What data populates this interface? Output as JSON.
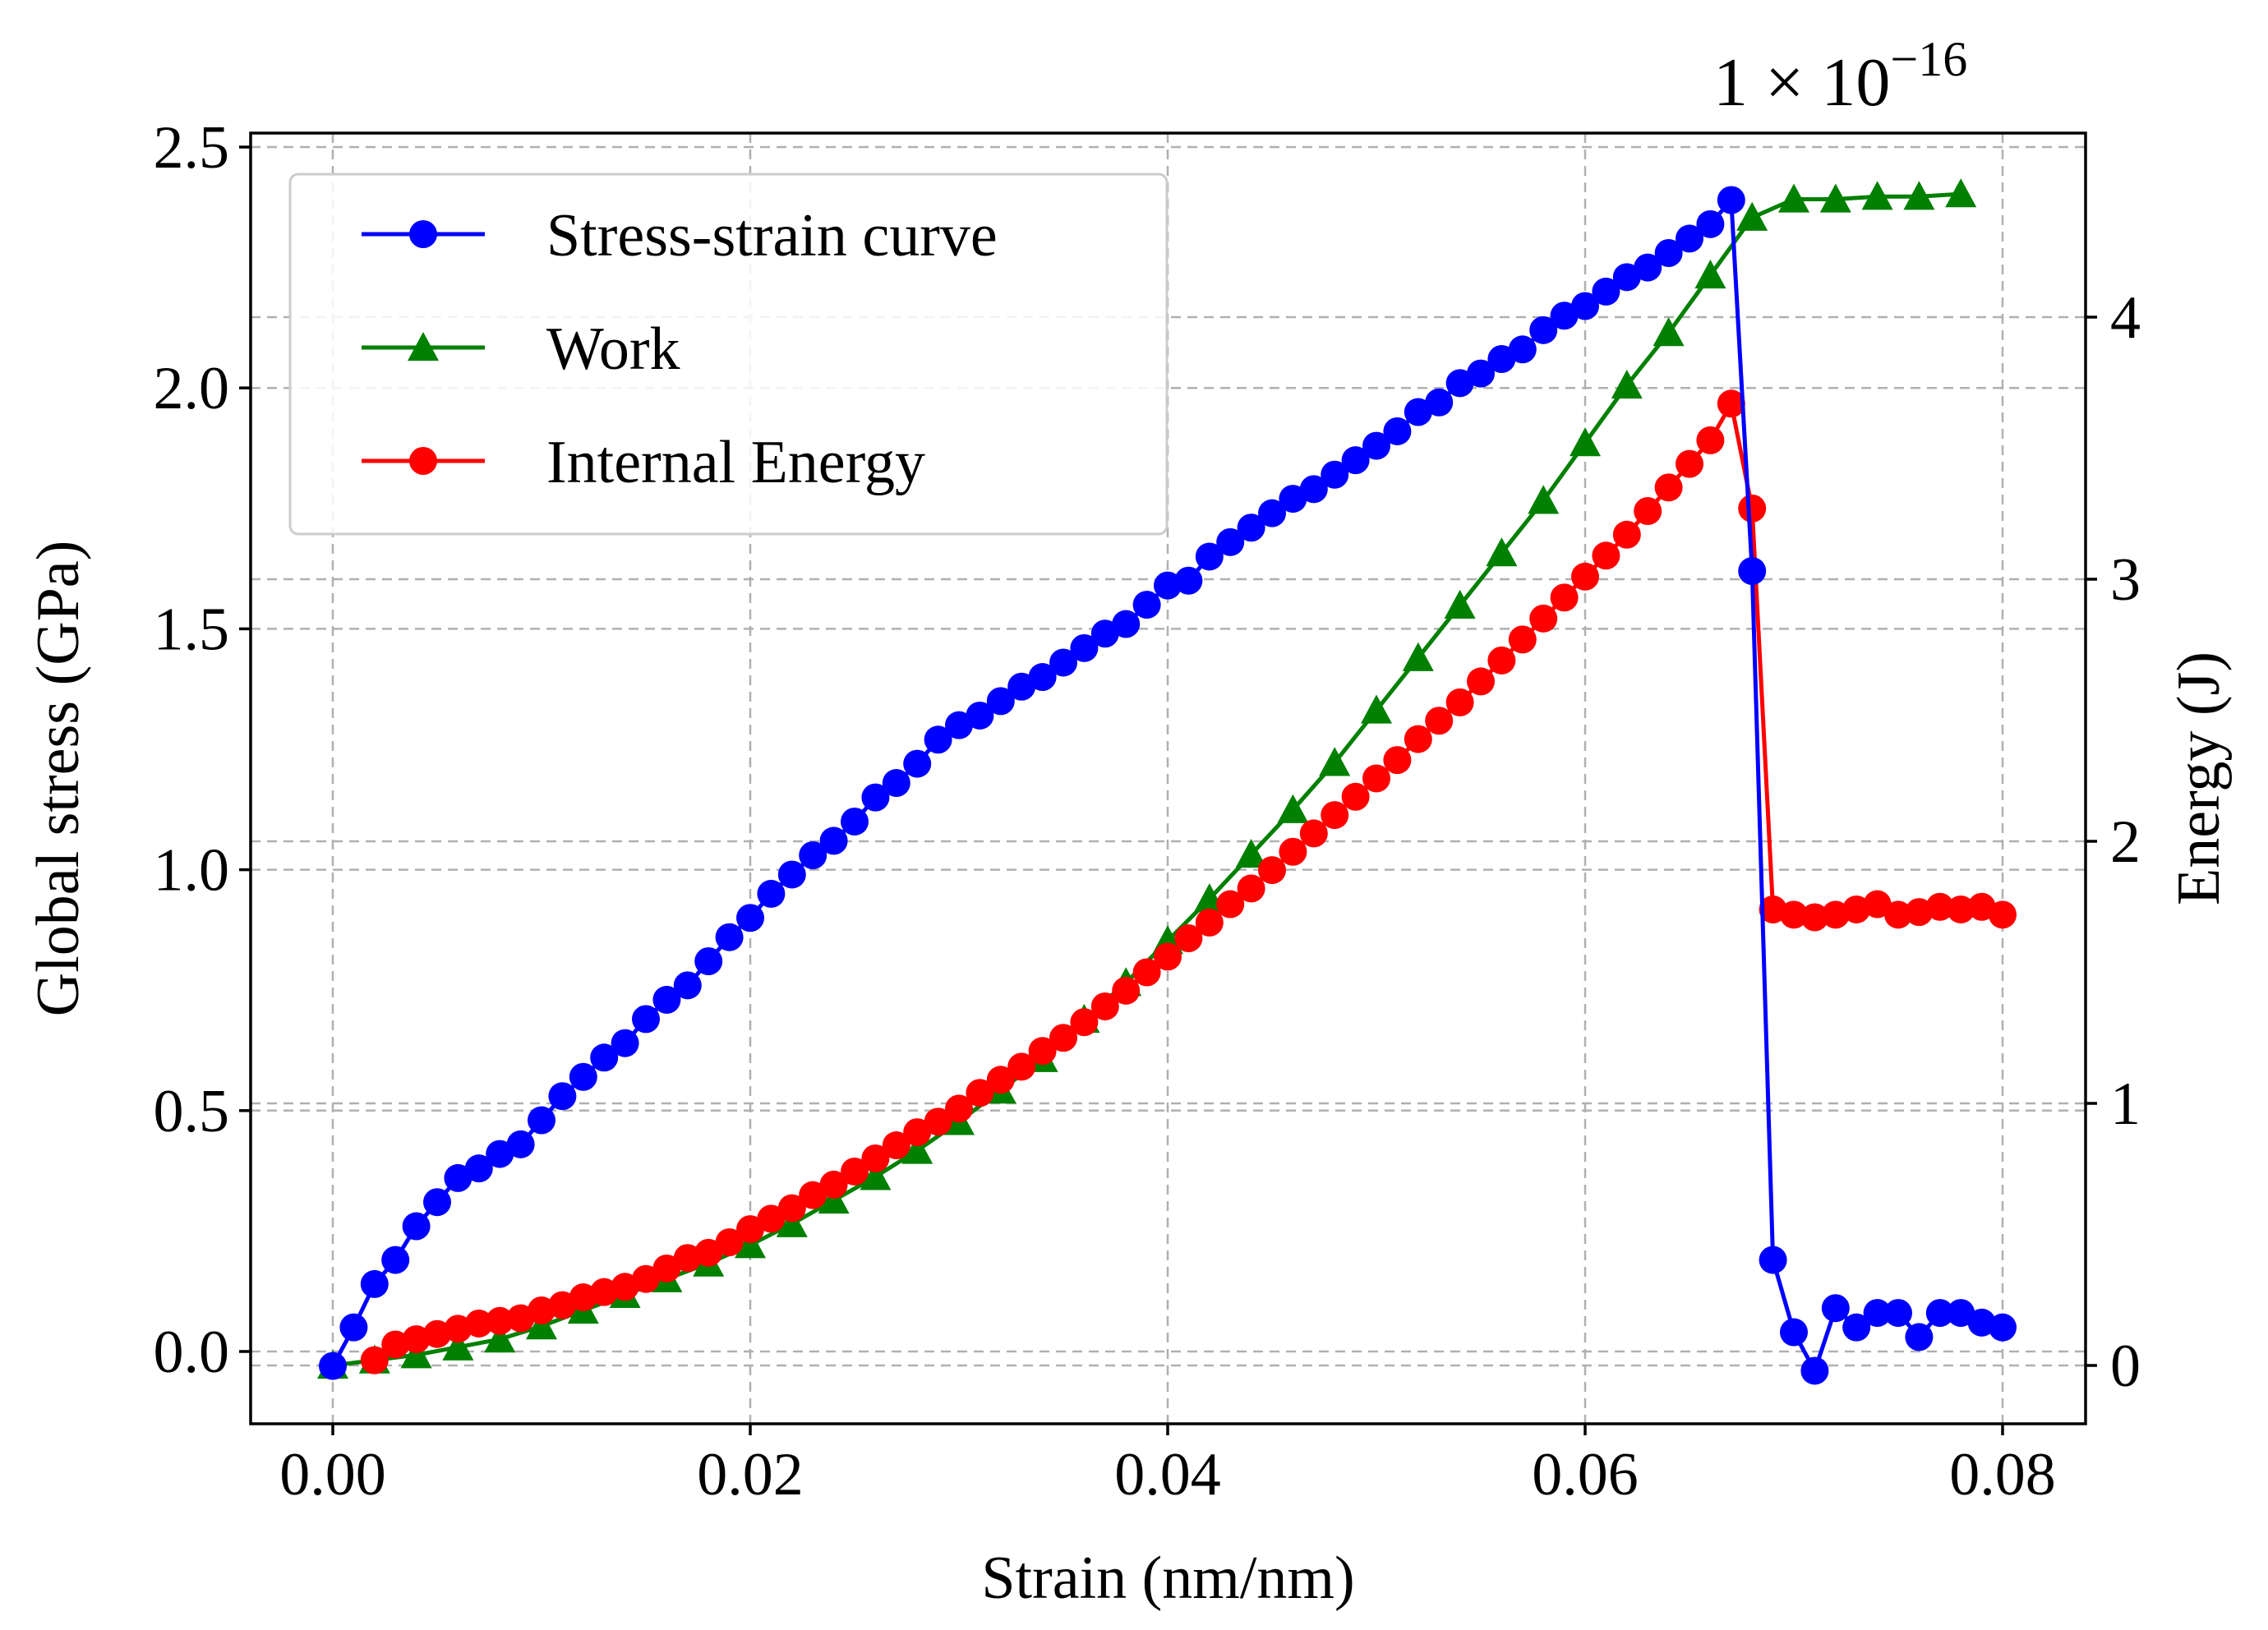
{
  "chart_data": {
    "type": "line",
    "title": "",
    "xlabel": "Strain (nm/nm)",
    "ylabel": "Global stress (GPa)",
    "y2label": "Energy (J)",
    "y2_scale_label": "1 × 10",
    "y2_scale_exponent": "−16",
    "xlim": [
      -0.004,
      0.084
    ],
    "ylim": [
      -0.15,
      2.52
    ],
    "y2lim": [
      -0.22,
      4.7
    ],
    "xticks": [
      0.0,
      0.02,
      0.04,
      0.06,
      0.08
    ],
    "xtick_labels": [
      "0.00",
      "0.02",
      "0.04",
      "0.06",
      "0.08"
    ],
    "yticks": [
      0.0,
      0.5,
      1.0,
      1.5,
      2.0,
      2.5
    ],
    "ytick_labels": [
      "0.0",
      "0.5",
      "1.0",
      "1.5",
      "2.0",
      "2.5"
    ],
    "y2ticks": [
      0,
      1,
      2,
      3,
      4
    ],
    "y2tick_labels": [
      "0",
      "1",
      "2",
      "3",
      "4"
    ],
    "grid": true,
    "legend_position": "top-left",
    "series": [
      {
        "name": "Stress-strain curve",
        "axis": "left",
        "color": "#0000ff",
        "marker": "circle",
        "x": [
          0.0,
          0.001,
          0.002,
          0.003,
          0.004,
          0.005,
          0.006,
          0.007,
          0.008,
          0.009,
          0.01,
          0.011,
          0.012,
          0.013,
          0.014,
          0.015,
          0.016,
          0.017,
          0.018,
          0.019,
          0.02,
          0.021,
          0.022,
          0.023,
          0.024,
          0.025,
          0.026,
          0.027,
          0.028,
          0.029,
          0.03,
          0.031,
          0.032,
          0.033,
          0.034,
          0.035,
          0.036,
          0.037,
          0.038,
          0.039,
          0.04,
          0.041,
          0.042,
          0.043,
          0.044,
          0.045,
          0.046,
          0.047,
          0.048,
          0.049,
          0.05,
          0.051,
          0.052,
          0.053,
          0.054,
          0.055,
          0.056,
          0.057,
          0.058,
          0.059,
          0.06,
          0.061,
          0.062,
          0.063,
          0.064,
          0.065,
          0.066,
          0.067,
          0.068,
          0.069,
          0.07,
          0.071,
          0.072,
          0.073,
          0.074,
          0.075,
          0.076,
          0.077,
          0.078,
          0.079,
          0.08
        ],
        "y": [
          -0.03,
          0.05,
          0.14,
          0.19,
          0.26,
          0.31,
          0.36,
          0.38,
          0.41,
          0.43,
          0.48,
          0.53,
          0.57,
          0.61,
          0.64,
          0.69,
          0.73,
          0.76,
          0.81,
          0.86,
          0.9,
          0.95,
          0.99,
          1.03,
          1.06,
          1.1,
          1.15,
          1.18,
          1.22,
          1.27,
          1.3,
          1.32,
          1.35,
          1.38,
          1.4,
          1.43,
          1.46,
          1.49,
          1.51,
          1.55,
          1.59,
          1.6,
          1.65,
          1.68,
          1.71,
          1.74,
          1.77,
          1.79,
          1.82,
          1.85,
          1.88,
          1.91,
          1.95,
          1.97,
          2.01,
          2.03,
          2.06,
          2.08,
          2.12,
          2.15,
          2.17,
          2.2,
          2.23,
          2.25,
          2.28,
          2.31,
          2.34,
          2.39,
          1.62,
          0.19,
          0.04,
          -0.04,
          0.09,
          0.05,
          0.08,
          0.08,
          0.03,
          0.08,
          0.08,
          0.06,
          0.05
        ]
      },
      {
        "name": "Work",
        "axis": "right",
        "color": "#008000",
        "marker": "triangle",
        "x": [
          0.0,
          0.002,
          0.004,
          0.006,
          0.008,
          0.01,
          0.012,
          0.014,
          0.016,
          0.018,
          0.02,
          0.022,
          0.024,
          0.026,
          0.028,
          0.03,
          0.032,
          0.034,
          0.036,
          0.038,
          0.04,
          0.042,
          0.044,
          0.046,
          0.048,
          0.05,
          0.052,
          0.054,
          0.056,
          0.058,
          0.06,
          0.062,
          0.064,
          0.066,
          0.068,
          0.07,
          0.072,
          0.074,
          0.076,
          0.078
        ],
        "y": [
          0.0,
          0.02,
          0.04,
          0.07,
          0.1,
          0.15,
          0.21,
          0.27,
          0.33,
          0.39,
          0.46,
          0.54,
          0.63,
          0.72,
          0.82,
          0.93,
          1.05,
          1.17,
          1.32,
          1.46,
          1.62,
          1.78,
          1.95,
          2.12,
          2.3,
          2.5,
          2.7,
          2.9,
          3.1,
          3.3,
          3.52,
          3.74,
          3.94,
          4.16,
          4.38,
          4.45,
          4.45,
          4.46,
          4.46,
          4.47
        ]
      },
      {
        "name": "Internal Energy",
        "axis": "right",
        "color": "#ff0000",
        "marker": "circle",
        "x": [
          0.002,
          0.003,
          0.004,
          0.005,
          0.006,
          0.007,
          0.008,
          0.009,
          0.01,
          0.011,
          0.012,
          0.013,
          0.014,
          0.015,
          0.016,
          0.017,
          0.018,
          0.019,
          0.02,
          0.021,
          0.022,
          0.023,
          0.024,
          0.025,
          0.026,
          0.027,
          0.028,
          0.029,
          0.03,
          0.031,
          0.032,
          0.033,
          0.034,
          0.035,
          0.036,
          0.037,
          0.038,
          0.039,
          0.04,
          0.041,
          0.042,
          0.043,
          0.044,
          0.045,
          0.046,
          0.047,
          0.048,
          0.049,
          0.05,
          0.051,
          0.052,
          0.053,
          0.054,
          0.055,
          0.056,
          0.057,
          0.058,
          0.059,
          0.06,
          0.061,
          0.062,
          0.063,
          0.064,
          0.065,
          0.066,
          0.067,
          0.068,
          0.069,
          0.07,
          0.071,
          0.072,
          0.073,
          0.074,
          0.075,
          0.076,
          0.077,
          0.078,
          0.079,
          0.08
        ],
        "y": [
          0.02,
          0.08,
          0.1,
          0.12,
          0.14,
          0.16,
          0.17,
          0.18,
          0.21,
          0.23,
          0.26,
          0.28,
          0.3,
          0.33,
          0.37,
          0.41,
          0.43,
          0.47,
          0.52,
          0.56,
          0.6,
          0.65,
          0.69,
          0.74,
          0.79,
          0.84,
          0.89,
          0.93,
          0.98,
          1.04,
          1.09,
          1.14,
          1.2,
          1.25,
          1.31,
          1.37,
          1.43,
          1.5,
          1.56,
          1.63,
          1.69,
          1.76,
          1.82,
          1.89,
          1.96,
          2.03,
          2.1,
          2.17,
          2.24,
          2.31,
          2.39,
          2.46,
          2.53,
          2.61,
          2.69,
          2.77,
          2.85,
          2.93,
          3.01,
          3.09,
          3.17,
          3.26,
          3.35,
          3.44,
          3.53,
          3.67,
          3.27,
          1.74,
          1.72,
          1.71,
          1.72,
          1.74,
          1.76,
          1.72,
          1.73,
          1.75,
          1.74,
          1.75,
          1.72
        ]
      }
    ]
  }
}
